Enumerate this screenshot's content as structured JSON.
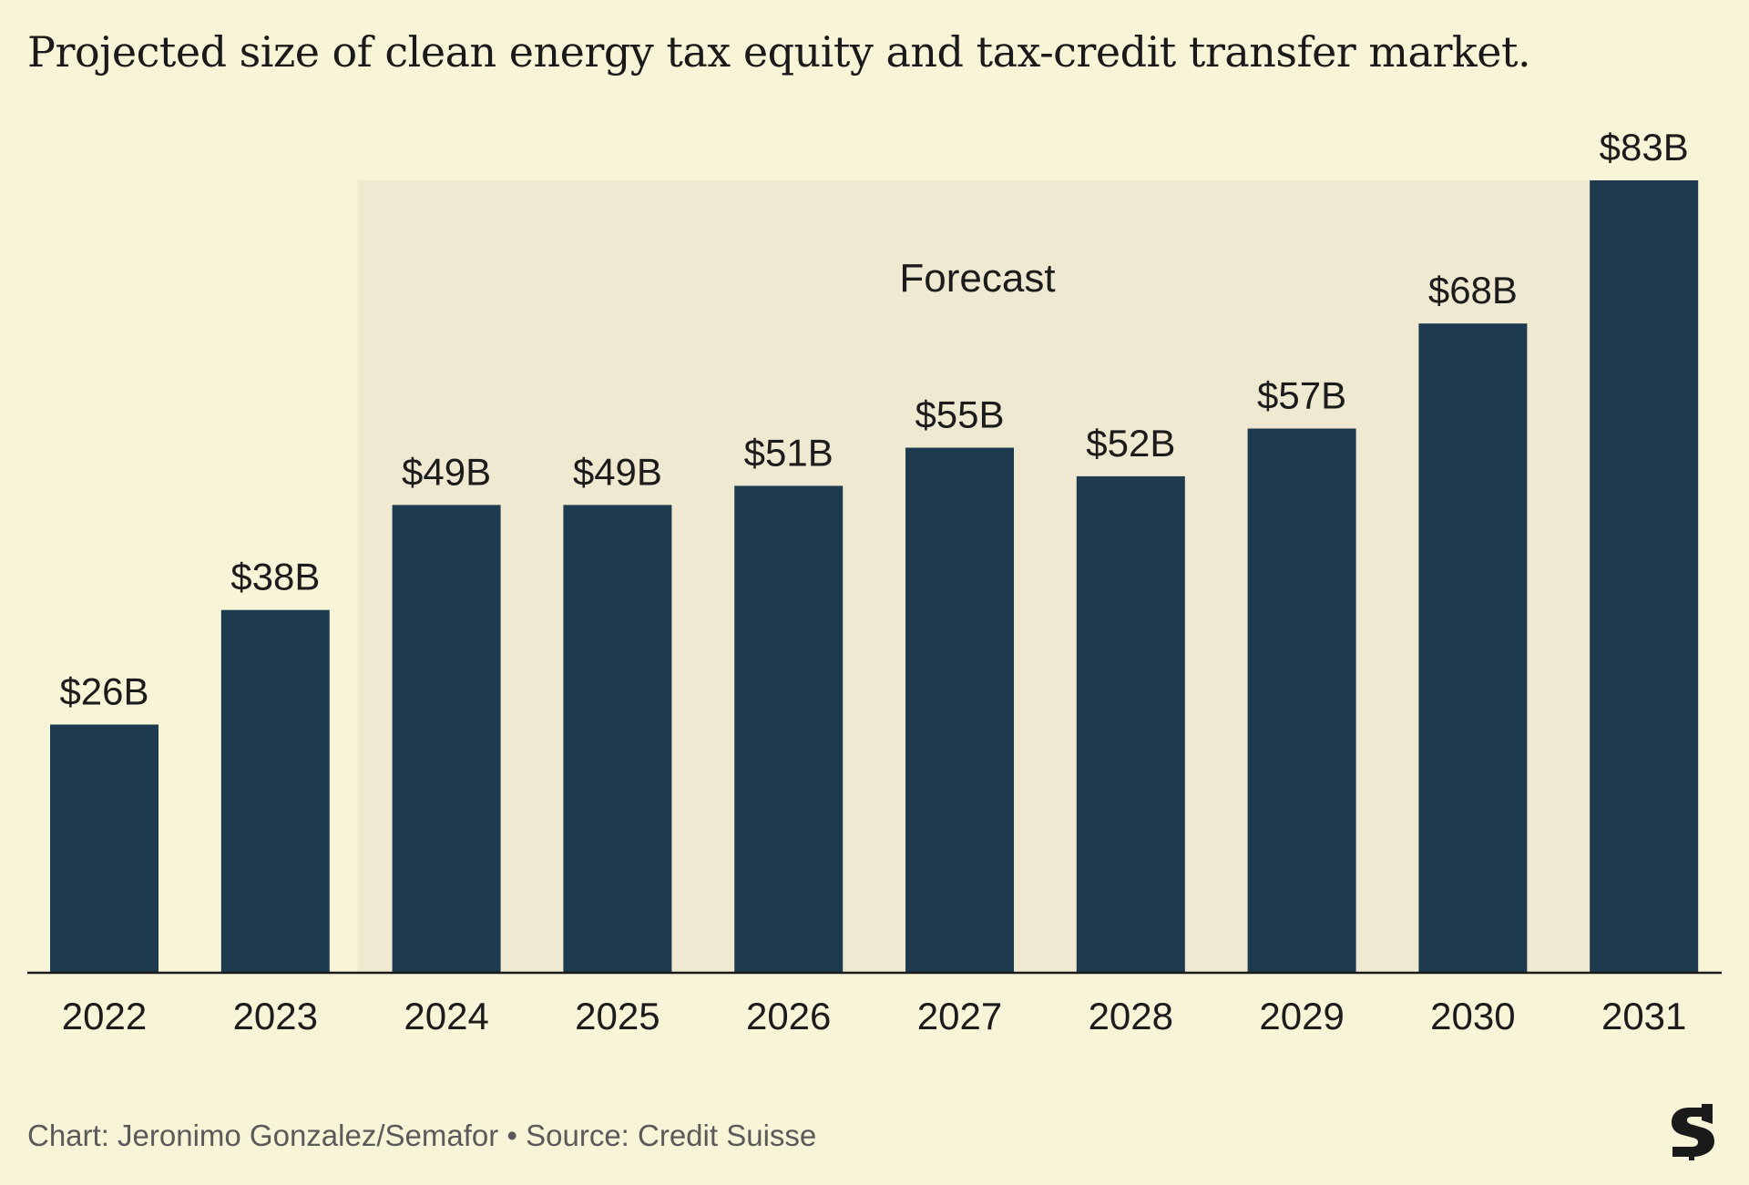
{
  "title": "Projected size of clean energy tax equity and tax-credit transfer market.",
  "credit": "Chart: Jeronimo Gonzalez/Semafor • Source: Credit Suisse",
  "logo_label": "S",
  "colors": {
    "background": "#f8f4d7",
    "forecast_band": "#efe9d1",
    "bar": "#1e3a4e",
    "axis": "#1a1a1a",
    "text": "#1c1c1c",
    "credit": "#5a5a5a"
  },
  "chart_data": {
    "type": "bar",
    "categories": [
      "2022",
      "2023",
      "2024",
      "2025",
      "2026",
      "2027",
      "2028",
      "2029",
      "2030",
      "2031"
    ],
    "values": [
      26,
      38,
      49,
      49,
      51,
      55,
      52,
      57,
      68,
      83
    ],
    "data_labels": [
      "$26B",
      "$38B",
      "$49B",
      "$49B",
      "$51B",
      "$55B",
      "$52B",
      "$57B",
      "$68B",
      "$83B"
    ],
    "unit": "$ billions",
    "ylim": [
      0,
      83
    ],
    "forecast_start_index": 2,
    "forecast_label": "Forecast",
    "grid": false,
    "legend": false
  }
}
